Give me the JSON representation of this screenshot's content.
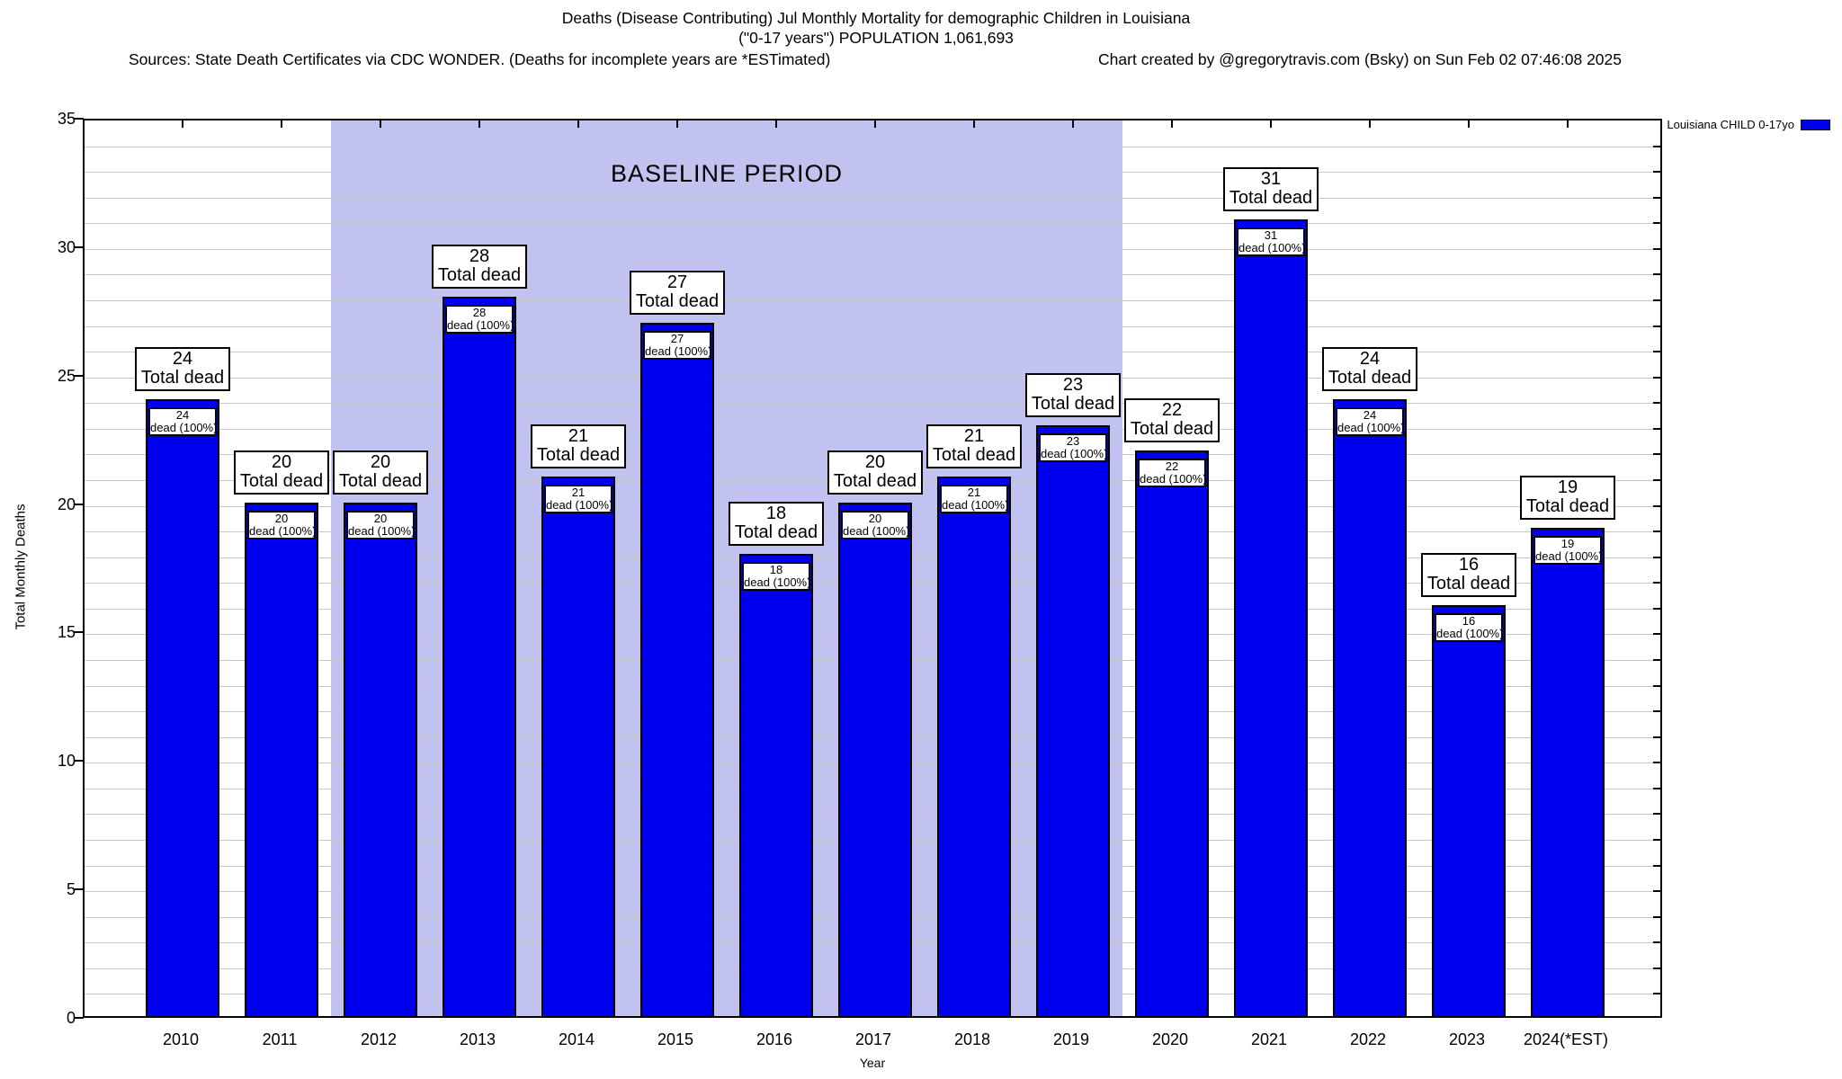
{
  "header": {
    "title_line1": "Deaths (Disease Contributing) Jul Monthly Mortality for demographic Children in Louisiana",
    "title_line2": "(\"0-17 years\") POPULATION 1,061,693",
    "sources": "Sources: State Death Certificates via CDC WONDER. (Deaths for incomplete years are *ESTimated)",
    "credit": "Chart created by @gregorytravis.com (Bsky) on Sun Feb 02 07:46:08 2025"
  },
  "legend": {
    "label": "Louisiana CHILD 0-17yo",
    "swatch_color": "#0000ee"
  },
  "chart_data": {
    "type": "bar",
    "title": "Deaths (Disease Contributing) Jul Monthly Mortality for demographic Children in Louisiana (\"0-17 years\") POPULATION 1,061,693",
    "xlabel": "Year",
    "ylabel": "Total Monthly Deaths",
    "ylim": [
      0,
      35
    ],
    "ytick_interval": 5,
    "minor_grid_interval": 1,
    "grid": true,
    "legend_position": "top-right-outside",
    "categories": [
      "2010",
      "2011",
      "2012",
      "2013",
      "2014",
      "2015",
      "2016",
      "2017",
      "2018",
      "2019",
      "2020",
      "2021",
      "2022",
      "2023",
      "2024(*EST)"
    ],
    "series": [
      {
        "name": "Louisiana CHILD 0-17yo",
        "color": "#0000ee",
        "values": [
          24,
          20,
          20,
          28,
          21,
          27,
          18,
          20,
          21,
          23,
          22,
          31,
          24,
          16,
          19
        ]
      }
    ],
    "bar_label_top_suffix": "Total dead",
    "bar_label_inner_suffix": "dead (100%)",
    "baseline_band": {
      "label": "BASELINE PERIOD",
      "x_start_category_index": 1.5,
      "x_end_category_index": 9.5,
      "covers_years": [
        "2012",
        "2013",
        "2014",
        "2015",
        "2016",
        "2017",
        "2018",
        "2019"
      ],
      "color": "#c2c2f0"
    }
  }
}
